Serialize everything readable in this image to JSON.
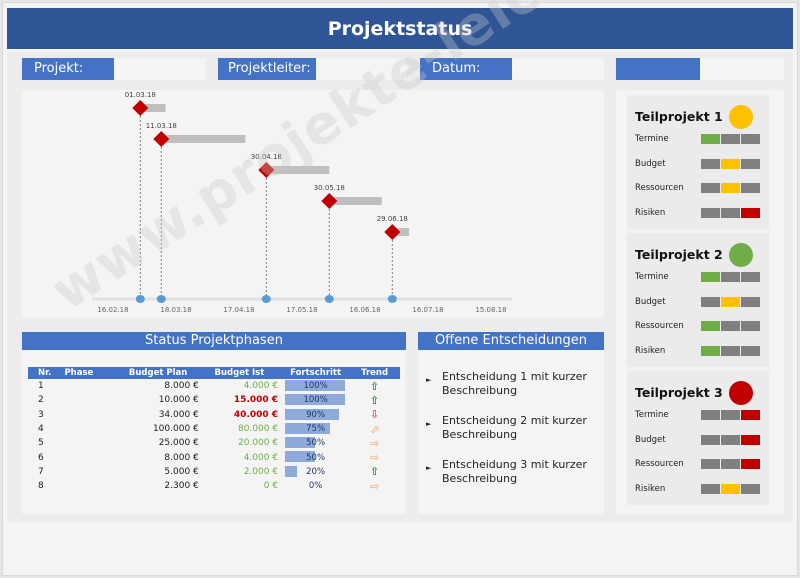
{
  "header": {
    "title": "Projektstatus"
  },
  "info": {
    "projekt_label": "Projekt:",
    "projekt_value": "",
    "projektleiter_label": "Projektleiter:",
    "projektleiter_value": "",
    "datum_label": "Datum:",
    "datum_value": "",
    "extra_label": ""
  },
  "gantt": {
    "milestones": [
      {
        "date": "01.03.18",
        "bar_days": 12
      },
      {
        "date": "11.03.18",
        "bar_days": 40
      },
      {
        "date": "30.04.18",
        "bar_days": 30
      },
      {
        "date": "30.05.18",
        "bar_days": 25
      },
      {
        "date": "29.06.18",
        "bar_days": 8
      }
    ],
    "axis_ticks": [
      "16.02.18",
      "18.03.18",
      "17.04.18",
      "17.05.18",
      "16.06.18",
      "16.07.18",
      "15.08.18"
    ],
    "colors": {
      "milestone": "#c00000",
      "bar": "#bfbfbf",
      "axis_dot": "#5b9bd5"
    }
  },
  "phasen": {
    "title": "Status Projektphasen",
    "columns": [
      "Nr.",
      "Phase",
      "Budget Plan",
      "Budget Ist",
      "Fortschritt",
      "Trend"
    ],
    "rows": [
      {
        "nr": "1",
        "phase": "",
        "plan": "8.000 €",
        "ist": "4.000 €",
        "ist_status": "ok",
        "progress": 100,
        "progress_label": "100%",
        "trend": "up"
      },
      {
        "nr": "2",
        "phase": "",
        "plan": "10.000 €",
        "ist": "15.000 €",
        "ist_status": "over",
        "progress": 100,
        "progress_label": "100%",
        "trend": "up"
      },
      {
        "nr": "3",
        "phase": "",
        "plan": "34.000 €",
        "ist": "40.000 €",
        "ist_status": "over",
        "progress": 90,
        "progress_label": "90%",
        "trend": "down"
      },
      {
        "nr": "4",
        "phase": "",
        "plan": "100.000 €",
        "ist": "80.000 €",
        "ist_status": "ok",
        "progress": 75,
        "progress_label": "75%",
        "trend": "up-right"
      },
      {
        "nr": "5",
        "phase": "",
        "plan": "25.000 €",
        "ist": "20.000 €",
        "ist_status": "ok",
        "progress": 50,
        "progress_label": "50%",
        "trend": "right"
      },
      {
        "nr": "6",
        "phase": "",
        "plan": "8.000 €",
        "ist": "4.000 €",
        "ist_status": "ok",
        "progress": 50,
        "progress_label": "50%",
        "trend": "right"
      },
      {
        "nr": "7",
        "phase": "",
        "plan": "5.000 €",
        "ist": "2.000 €",
        "ist_status": "ok",
        "progress": 20,
        "progress_label": "20%",
        "trend": "up"
      },
      {
        "nr": "8",
        "phase": "",
        "plan": "2.300 €",
        "ist": "0 €",
        "ist_status": "ok",
        "progress": 0,
        "progress_label": "0%",
        "trend": "right"
      }
    ],
    "colors": {
      "ok": "#70ad47",
      "over": "#c00000",
      "trend_up": "#2e8b3a",
      "trend_down": "#e05050",
      "trend_side": "#f4b183"
    }
  },
  "entscheidungen": {
    "title": "Offene Entscheidungen",
    "items": [
      "Entscheidung 1 mit kurzer Beschreibung",
      "Entscheidung 2 mit kurzer Beschreibung",
      "Entscheidung 3 mit kurzer Beschreibung"
    ]
  },
  "teilprojekte": [
    {
      "title": "Teilprojekt 1",
      "status": "yellow",
      "rows": [
        {
          "label": "Termine",
          "cells": [
            "green",
            "grey",
            "grey"
          ]
        },
        {
          "label": "Budget",
          "cells": [
            "grey",
            "yellow",
            "grey"
          ]
        },
        {
          "label": "Ressourcen",
          "cells": [
            "grey",
            "yellow",
            "grey"
          ]
        },
        {
          "label": "Risiken",
          "cells": [
            "grey",
            "grey",
            "red"
          ]
        }
      ]
    },
    {
      "title": "Teilprojekt 2",
      "status": "green",
      "rows": [
        {
          "label": "Termine",
          "cells": [
            "green",
            "grey",
            "grey"
          ]
        },
        {
          "label": "Budget",
          "cells": [
            "grey",
            "yellow",
            "grey"
          ]
        },
        {
          "label": "Ressourcen",
          "cells": [
            "green",
            "grey",
            "grey"
          ]
        },
        {
          "label": "Risiken",
          "cells": [
            "green",
            "grey",
            "grey"
          ]
        }
      ]
    },
    {
      "title": "Teilprojekt 3",
      "status": "red",
      "rows": [
        {
          "label": "Termine",
          "cells": [
            "grey",
            "grey",
            "red"
          ]
        },
        {
          "label": "Budget",
          "cells": [
            "grey",
            "grey",
            "red"
          ]
        },
        {
          "label": "Ressourcen",
          "cells": [
            "grey",
            "grey",
            "red"
          ]
        },
        {
          "label": "Risiken",
          "cells": [
            "grey",
            "yellow",
            "grey"
          ]
        }
      ]
    }
  ],
  "status_colors": {
    "green": "#70ad47",
    "yellow": "#ffc000",
    "red": "#c00000",
    "grey": "#7f7f7f"
  },
  "watermark": "www.projekte-leicht-gemacht.de"
}
